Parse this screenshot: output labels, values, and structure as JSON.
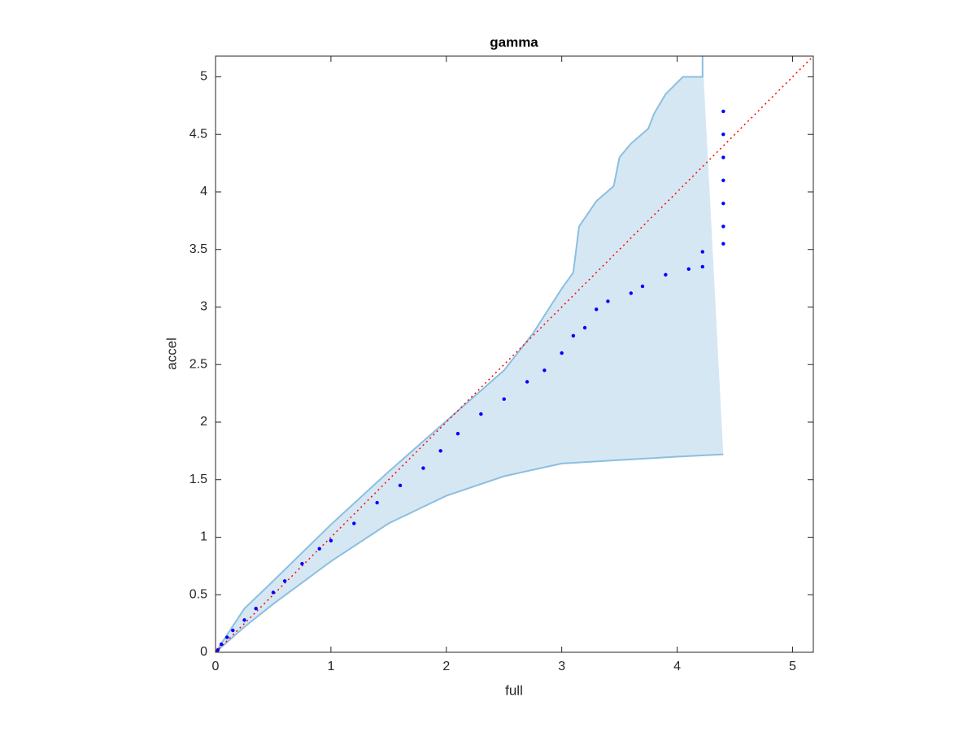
{
  "chart_data": {
    "type": "scatter",
    "title": "gamma",
    "xlabel": "full",
    "ylabel": "accel",
    "xlim": [
      0,
      5.18
    ],
    "ylim": [
      0,
      5.18
    ],
    "xticks": [
      0,
      1,
      2,
      3,
      4,
      5
    ],
    "yticks": [
      0,
      0.5,
      1,
      1.5,
      2,
      2.5,
      3,
      3.5,
      4,
      4.5,
      5
    ],
    "band": {
      "color": "#d6e7f4",
      "edge_color": "#8bbfe0",
      "upper": {
        "x": [
          0,
          0.25,
          0.5,
          1,
          1.5,
          2,
          2.5,
          2.75,
          3,
          3.1,
          3.15,
          3.3,
          3.45,
          3.5,
          3.6,
          3.75,
          3.8,
          3.9,
          4.0,
          4.05,
          4.22,
          4.22
        ],
        "y": [
          0,
          0.38,
          0.62,
          1.11,
          1.57,
          2.01,
          2.45,
          2.77,
          3.16,
          3.3,
          3.7,
          3.92,
          4.05,
          4.3,
          4.42,
          4.55,
          4.68,
          4.85,
          4.95,
          5.0,
          5.0,
          5.18
        ]
      },
      "lower": {
        "x": [
          0,
          0.25,
          0.5,
          1,
          1.5,
          2,
          2.5,
          3,
          3.5,
          4,
          4.4
        ],
        "y": [
          0,
          0.22,
          0.42,
          0.79,
          1.12,
          1.36,
          1.53,
          1.64,
          1.67,
          1.7,
          1.72
        ]
      }
    },
    "points": {
      "color": "#0000ff",
      "x": [
        0.02,
        0.05,
        0.1,
        0.15,
        0.25,
        0.35,
        0.5,
        0.6,
        0.75,
        0.9,
        1,
        1.2,
        1.4,
        1.6,
        1.8,
        1.95,
        2.1,
        2.3,
        2.5,
        2.7,
        2.85,
        3,
        3.1,
        3.2,
        3.3,
        3.4,
        3.6,
        3.7,
        3.9,
        4.1,
        4.22,
        4.22,
        4.4,
        4.4,
        4.4,
        4.4,
        4.4,
        4.4,
        4.4
      ],
      "y": [
        0.02,
        0.07,
        0.13,
        0.19,
        0.28,
        0.38,
        0.52,
        0.62,
        0.77,
        0.9,
        0.97,
        1.12,
        1.3,
        1.45,
        1.6,
        1.75,
        1.9,
        2.07,
        2.2,
        2.35,
        2.45,
        2.6,
        2.75,
        2.82,
        2.98,
        3.05,
        3.12,
        3.18,
        3.28,
        3.33,
        3.35,
        3.48,
        3.55,
        3.7,
        3.9,
        4.1,
        4.3,
        4.5,
        4.7
      ]
    },
    "reference": {
      "color": "#ff0000",
      "x": [
        0,
        5.18
      ],
      "y": [
        0,
        5.18
      ]
    }
  }
}
